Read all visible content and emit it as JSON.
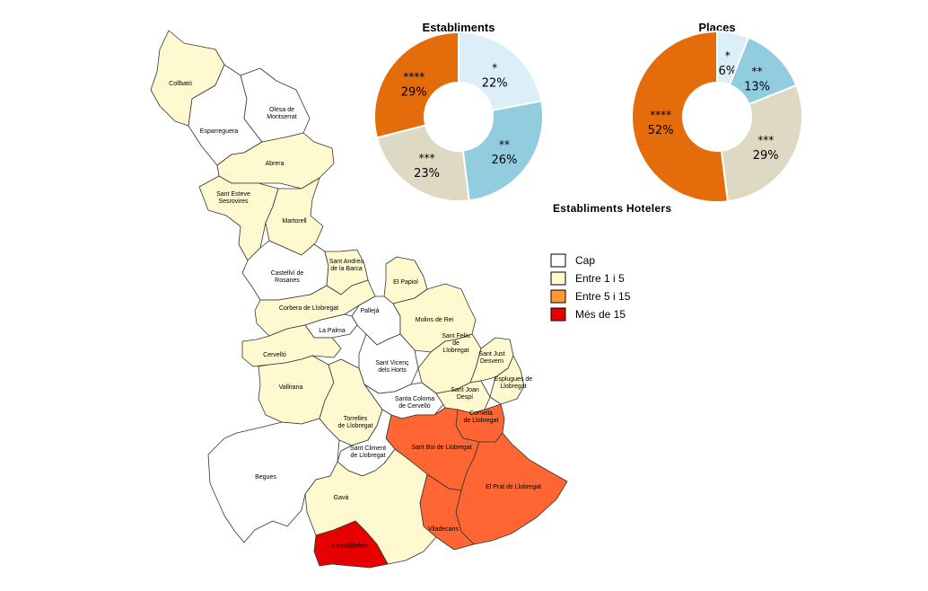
{
  "map": {
    "title": "Establiments Hotelers",
    "legend": [
      {
        "label": "Cap",
        "color": "#ffffff"
      },
      {
        "label": "Entre 1 i 5",
        "color": "#fff9cf"
      },
      {
        "label": "Entre 5 i 15",
        "color": "#ff9933"
      },
      {
        "label": "Més de 15",
        "color": "#e60000"
      }
    ],
    "categories": {
      "none": "#ffffff",
      "low": "#fff9cf",
      "mid": "#ff6633",
      "high": "#e60000"
    },
    "municipalities": [
      {
        "id": "collbato",
        "label": "Collbató",
        "category": "low"
      },
      {
        "id": "esparreguera",
        "label": "Esparreguera",
        "category": "none"
      },
      {
        "id": "olesa",
        "label": "Olesa de Montserrat",
        "category": "none"
      },
      {
        "id": "abrera",
        "label": "Abrera",
        "category": "low"
      },
      {
        "id": "sant-esteve",
        "label": "Sant Esteve Sesrovires",
        "category": "low"
      },
      {
        "id": "martorell",
        "label": "Martorell",
        "category": "low"
      },
      {
        "id": "castellvi",
        "label": "Castellví de Rosanes",
        "category": "none"
      },
      {
        "id": "sant-andreu",
        "label": "Sant Andreu de la Barca",
        "category": "low"
      },
      {
        "id": "el-papiol",
        "label": "El Papiol",
        "category": "low"
      },
      {
        "id": "corbera",
        "label": "Corbera de Llobregat",
        "category": "low"
      },
      {
        "id": "palleja",
        "label": "Pallejà",
        "category": "none"
      },
      {
        "id": "molins",
        "label": "Molins de Rei",
        "category": "low"
      },
      {
        "id": "la-palma",
        "label": "La Palma",
        "category": "none"
      },
      {
        "id": "cervello",
        "label": "Cervelló",
        "category": "low"
      },
      {
        "id": "sant-feliu",
        "label": "Sant Feliu de Llobregat",
        "category": "low"
      },
      {
        "id": "sant-just",
        "label": "Sant Just Desvern",
        "category": "low"
      },
      {
        "id": "sant-vicenc",
        "label": "Sant Vicenç dels Horts",
        "category": "none"
      },
      {
        "id": "esplugues",
        "label": "Esplugues de Llobregat",
        "category": "low"
      },
      {
        "id": "vallirana",
        "label": "Vallirana",
        "category": "low"
      },
      {
        "id": "santa-coloma",
        "label": "Santa Coloma de Cervelló",
        "category": "none"
      },
      {
        "id": "sant-joan",
        "label": "Sant Joan Despí",
        "category": "low"
      },
      {
        "id": "cornella",
        "label": "Cornellà de Llobregat",
        "category": "mid"
      },
      {
        "id": "torrelles",
        "label": "Torrelles de Llobregat",
        "category": "low"
      },
      {
        "id": "sant-boi",
        "label": "Sant Boi de Llobregat",
        "category": "mid"
      },
      {
        "id": "sant-climent",
        "label": "Sant Climent de Llobregat",
        "category": "none"
      },
      {
        "id": "begues",
        "label": "Begues",
        "category": "none"
      },
      {
        "id": "el-prat",
        "label": "El Prat de Llobregat",
        "category": "mid"
      },
      {
        "id": "gava",
        "label": "Gavà",
        "category": "low"
      },
      {
        "id": "viladecans",
        "label": "Viladecans",
        "category": "mid"
      },
      {
        "id": "castelldefels",
        "label": "Castelldefels",
        "category": "high"
      }
    ]
  },
  "chart_data": [
    {
      "type": "pie",
      "donut": true,
      "title": "Establiments",
      "labels": [
        "*",
        "**",
        "***",
        "****"
      ],
      "values": [
        22,
        26,
        23,
        29
      ],
      "value_labels": [
        "22%",
        "26%",
        "23%",
        "29%"
      ],
      "colors": [
        "#dceef7",
        "#92cddf",
        "#ddd9c3",
        "#e46c0a"
      ]
    },
    {
      "type": "pie",
      "donut": true,
      "title": "Places",
      "labels": [
        "*",
        "**",
        "***",
        "****"
      ],
      "values": [
        6,
        13,
        29,
        52
      ],
      "value_labels": [
        "6%",
        "13%",
        "29%",
        "52%"
      ],
      "colors": [
        "#dceef7",
        "#92cddf",
        "#ddd9c3",
        "#e46c0a"
      ]
    }
  ]
}
